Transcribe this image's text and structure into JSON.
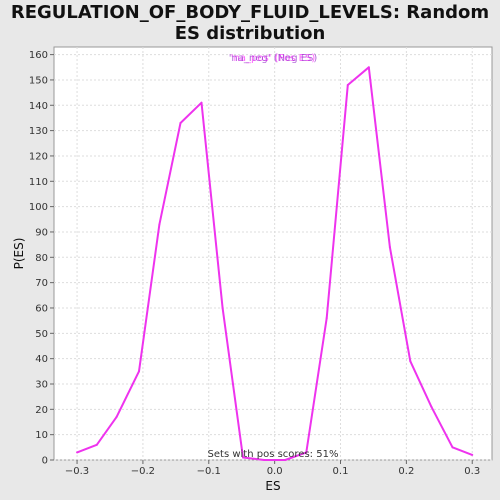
{
  "chart_data": {
    "type": "line",
    "title": "REGULATION_OF_BODY_FLUID_LEVELS: Random ES distribution",
    "xlabel": "ES",
    "ylabel": "P(ES)",
    "xlim": [
      -0.335,
      0.33
    ],
    "ylim": [
      0,
      163
    ],
    "x_ticks": [
      -0.3,
      -0.2,
      -0.1,
      0.0,
      0.1,
      0.2,
      0.3
    ],
    "x_tick_labels": [
      "−0.3",
      "−0.2",
      "−0.1",
      "0.0",
      "0.1",
      "0.2",
      "0.3"
    ],
    "y_ticks": [
      0,
      10,
      20,
      30,
      40,
      50,
      60,
      70,
      80,
      90,
      100,
      110,
      120,
      130,
      140,
      150,
      160
    ],
    "grid": true,
    "legend": {
      "placement": "top-center",
      "entries": [
        {
          "label": "'na_pos' (Pos ES)",
          "color": "#ff44ff"
        },
        {
          "label": "'na_neg' (Neg ES)",
          "color": "#9933cc"
        }
      ]
    },
    "series": [
      {
        "color": "#ee33ee",
        "x": [
          -0.3,
          -0.27,
          -0.24,
          -0.206,
          -0.175,
          -0.143,
          -0.111,
          -0.079,
          -0.048,
          -0.016,
          0.016,
          0.048,
          0.079,
          0.111,
          0.143,
          0.175,
          0.206,
          0.238,
          0.27,
          0.3
        ],
        "y": [
          3,
          6,
          17,
          35,
          93,
          133,
          141,
          60,
          1,
          0,
          0,
          3,
          56,
          148,
          155,
          84,
          39,
          21,
          5,
          2
        ]
      }
    ],
    "annotation": "Sets with pos scores: 51%"
  }
}
